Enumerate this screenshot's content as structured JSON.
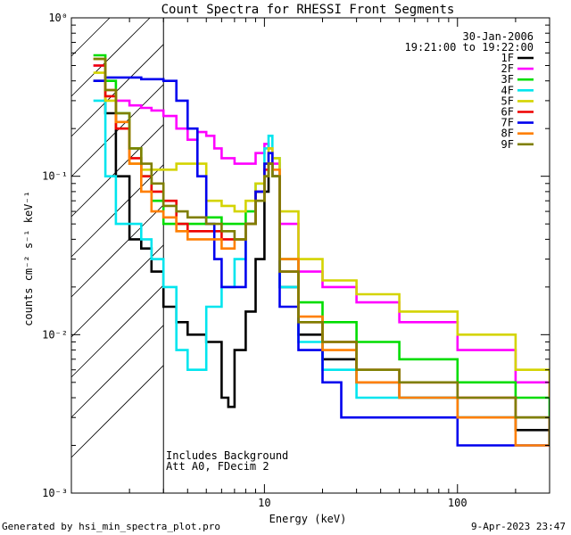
{
  "chart_data": {
    "type": "line",
    "title": "Count Spectra for RHESSI Front Segments",
    "xlabel": "Energy (keV)",
    "ylabel": "counts cm⁻² s⁻¹ keV⁻¹",
    "xscale": "log",
    "yscale": "log",
    "xlim": [
      1.0,
      300.0
    ],
    "ylim": [
      0.001,
      1.0
    ],
    "x_ticks": [
      10,
      100
    ],
    "x_tick_labels": [
      "10",
      "100"
    ],
    "y_ticks": [
      0.001,
      0.01,
      0.1,
      1.0
    ],
    "y_tick_labels": [
      "10⁻³",
      "10⁻²",
      "10⁻¹",
      "10⁰"
    ],
    "date": "30-Jan-2006",
    "time_range": "19:21:00 to 19:22:00",
    "note_line1": "Includes Background",
    "note_line2": "Att A0, FDecim 2",
    "excluded_region_max_keV": 3.0,
    "series": [
      {
        "name": "1F",
        "color": "#000000",
        "x": [
          1.3,
          1.5,
          1.7,
          2.0,
          2.3,
          2.6,
          3.0,
          3.5,
          4.0,
          5.0,
          6.0,
          6.5,
          7.0,
          8.0,
          9.0,
          10.0,
          10.5,
          11.0,
          12.0,
          15.0,
          20.0,
          30.0,
          50.0,
          100.0,
          200.0,
          300.0
        ],
        "y": [
          0.4,
          0.25,
          0.1,
          0.04,
          0.035,
          0.025,
          0.015,
          0.012,
          0.01,
          0.009,
          0.004,
          0.0035,
          0.008,
          0.014,
          0.03,
          0.08,
          0.12,
          0.1,
          0.02,
          0.01,
          0.007,
          0.005,
          0.004,
          0.003,
          0.0025,
          0.002
        ]
      },
      {
        "name": "2F",
        "color": "#ff00ff",
        "x": [
          1.3,
          1.5,
          1.7,
          2.0,
          2.3,
          2.6,
          3.0,
          3.5,
          4.0,
          4.5,
          5.0,
          5.5,
          6.0,
          6.5,
          7.0,
          8.0,
          9.0,
          10.0,
          10.5,
          11.0,
          12.0,
          15.0,
          20.0,
          30.0,
          50.0,
          100.0,
          200.0,
          300.0
        ],
        "y": [
          0.5,
          0.35,
          0.3,
          0.28,
          0.27,
          0.26,
          0.24,
          0.2,
          0.17,
          0.19,
          0.18,
          0.15,
          0.13,
          0.13,
          0.12,
          0.12,
          0.14,
          0.16,
          0.15,
          0.12,
          0.05,
          0.025,
          0.02,
          0.016,
          0.012,
          0.008,
          0.005,
          0.004
        ]
      },
      {
        "name": "3F",
        "color": "#00dd00",
        "x": [
          1.3,
          1.5,
          1.7,
          2.0,
          2.3,
          2.6,
          3.0,
          3.5,
          4.0,
          5.0,
          6.0,
          7.0,
          8.0,
          9.0,
          10.0,
          10.5,
          11.0,
          12.0,
          15.0,
          20.0,
          30.0,
          50.0,
          100.0,
          200.0,
          300.0
        ],
        "y": [
          0.58,
          0.4,
          0.25,
          0.15,
          0.1,
          0.07,
          0.05,
          0.05,
          0.05,
          0.055,
          0.05,
          0.05,
          0.06,
          0.08,
          0.1,
          0.12,
          0.1,
          0.03,
          0.016,
          0.012,
          0.009,
          0.007,
          0.005,
          0.004,
          0.003
        ]
      },
      {
        "name": "4F",
        "color": "#00e5ee",
        "x": [
          1.3,
          1.5,
          1.7,
          2.0,
          2.3,
          2.6,
          3.0,
          3.5,
          4.0,
          5.0,
          6.0,
          7.0,
          8.0,
          9.0,
          10.0,
          10.5,
          11.0,
          12.0,
          15.0,
          20.0,
          30.0,
          50.0,
          100.0,
          200.0,
          300.0
        ],
        "y": [
          0.3,
          0.1,
          0.05,
          0.05,
          0.04,
          0.03,
          0.02,
          0.008,
          0.006,
          0.015,
          0.02,
          0.03,
          0.05,
          0.09,
          0.15,
          0.18,
          0.13,
          0.02,
          0.009,
          0.006,
          0.004,
          0.004,
          0.003,
          0.003,
          0.003
        ]
      },
      {
        "name": "5F",
        "color": "#d4d400",
        "x": [
          1.3,
          1.5,
          1.7,
          2.0,
          2.3,
          2.6,
          3.0,
          3.5,
          4.0,
          5.0,
          6.0,
          7.0,
          8.0,
          9.0,
          10.0,
          10.5,
          11.0,
          12.0,
          15.0,
          20.0,
          30.0,
          50.0,
          100.0,
          200.0,
          300.0
        ],
        "y": [
          0.45,
          0.3,
          0.2,
          0.12,
          0.11,
          0.11,
          0.11,
          0.12,
          0.12,
          0.07,
          0.065,
          0.06,
          0.07,
          0.09,
          0.12,
          0.15,
          0.13,
          0.06,
          0.03,
          0.022,
          0.018,
          0.014,
          0.01,
          0.006,
          0.004
        ]
      },
      {
        "name": "6F",
        "color": "#ee0000",
        "x": [
          1.3,
          1.5,
          1.7,
          2.0,
          2.3,
          2.6,
          3.0,
          3.5,
          4.0,
          5.0,
          6.0,
          7.0,
          8.0,
          9.0,
          10.0,
          10.5,
          11.0,
          12.0,
          15.0,
          20.0,
          30.0,
          50.0,
          100.0,
          200.0,
          300.0
        ],
        "y": [
          0.5,
          0.32,
          0.2,
          0.13,
          0.1,
          0.08,
          0.07,
          0.05,
          0.045,
          0.045,
          0.04,
          0.04,
          0.05,
          0.08,
          0.11,
          0.12,
          0.1,
          0.025,
          0.012,
          0.009,
          0.006,
          0.005,
          0.004,
          0.003,
          0.002
        ]
      },
      {
        "name": "7F",
        "color": "#0000ee",
        "x": [
          1.3,
          1.5,
          1.7,
          2.0,
          2.3,
          2.6,
          3.0,
          3.5,
          4.0,
          4.5,
          5.0,
          5.5,
          6.0,
          7.0,
          8.0,
          9.0,
          10.0,
          10.5,
          11.0,
          12.0,
          15.0,
          20.0,
          25.0,
          30.0,
          50.0,
          100.0,
          200.0,
          300.0
        ],
        "y": [
          0.4,
          0.42,
          0.42,
          0.42,
          0.41,
          0.41,
          0.4,
          0.3,
          0.2,
          0.1,
          0.05,
          0.03,
          0.02,
          0.02,
          0.05,
          0.08,
          0.12,
          0.14,
          0.1,
          0.015,
          0.008,
          0.005,
          0.003,
          0.003,
          0.003,
          0.002,
          0.002,
          0.002
        ]
      },
      {
        "name": "8F",
        "color": "#ff7f00",
        "x": [
          1.3,
          1.5,
          1.7,
          2.0,
          2.3,
          2.6,
          3.0,
          3.5,
          4.0,
          5.0,
          6.0,
          7.0,
          8.0,
          9.0,
          10.0,
          10.5,
          11.0,
          12.0,
          15.0,
          20.0,
          30.0,
          50.0,
          100.0,
          200.0,
          300.0
        ],
        "y": [
          0.55,
          0.35,
          0.22,
          0.12,
          0.08,
          0.06,
          0.055,
          0.045,
          0.04,
          0.04,
          0.035,
          0.04,
          0.05,
          0.07,
          0.1,
          0.12,
          0.11,
          0.03,
          0.013,
          0.008,
          0.005,
          0.004,
          0.003,
          0.002,
          0.002
        ]
      },
      {
        "name": "9F",
        "color": "#7f7f00",
        "x": [
          1.3,
          1.5,
          1.7,
          2.0,
          2.3,
          2.6,
          3.0,
          3.5,
          4.0,
          5.0,
          6.0,
          7.0,
          8.0,
          9.0,
          10.0,
          10.5,
          11.0,
          12.0,
          15.0,
          20.0,
          30.0,
          50.0,
          100.0,
          200.0,
          300.0
        ],
        "y": [
          0.55,
          0.35,
          0.25,
          0.15,
          0.12,
          0.09,
          0.065,
          0.06,
          0.055,
          0.05,
          0.045,
          0.04,
          0.05,
          0.07,
          0.1,
          0.12,
          0.1,
          0.025,
          0.012,
          0.009,
          0.006,
          0.005,
          0.004,
          0.003,
          0.002
        ]
      }
    ]
  },
  "footer": {
    "generated_by": "Generated by hsi_min_spectra_plot.pro",
    "timestamp": "9-Apr-2023 23:47"
  }
}
